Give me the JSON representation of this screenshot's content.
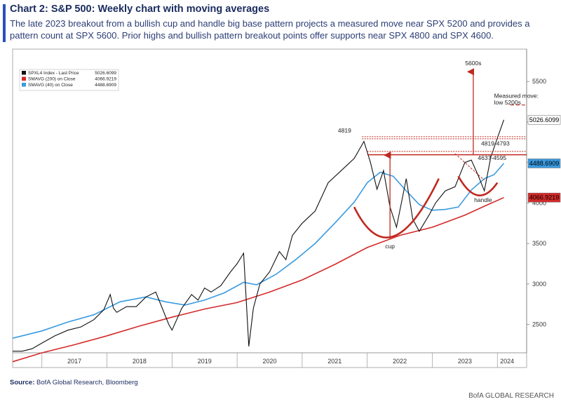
{
  "header": {
    "title": "Chart 2: S&P 500: Weekly chart with moving averages",
    "subtitle": "The late 2023 breakout from a bullish cup and handle big base pattern projects a measured move near SPX 5200 and provides a pattern count at SPX 5600. Prior highs and bullish pattern breakout points offer supports near SPX 4800 and SPX 4600."
  },
  "footer": {
    "source_label": "Source:",
    "source_text": " BofA Global Research, Bloomberg",
    "brand": "BofA GLOBAL RESEARCH"
  },
  "colors": {
    "price": "#111111",
    "sma200": "#d42a2a",
    "sma40": "#3a9be0",
    "annotation": "#c0281f",
    "accent": "#2a4fbf"
  },
  "chart_data": {
    "type": "line",
    "ylim": [
      2150,
      5900
    ],
    "yticks": [
      2500,
      3000,
      3500,
      4000,
      4500,
      5000,
      5500
    ],
    "xlim": [
      2016.55,
      2024.45
    ],
    "x_ticks": [
      2017.0,
      2018.0,
      2019.0,
      2020.0,
      2021.0,
      2022.0,
      2023.0,
      2024.0
    ],
    "x_labels": [
      "2017",
      "2018",
      "2019",
      "2020",
      "2021",
      "2022",
      "2023",
      "2024"
    ],
    "legend": [
      {
        "name": "SPXL4 Index - Last Price",
        "value": "5026.6099",
        "color": "#111111"
      },
      {
        "name": "SMAVG (200) on Close",
        "value": "4066.9219",
        "color": "#d42a2a"
      },
      {
        "name": "SMAVG (40) on Close",
        "value": "4488.6909",
        "color": "#3a9be0"
      }
    ],
    "last_value_tags": [
      {
        "label": "5026.6099",
        "value": 5026.6099,
        "bg": "#ffffff",
        "fg": "#000000"
      },
      {
        "label": "4488.6909",
        "value": 4488.6909,
        "bg": "#3a9be0",
        "fg": "#000000"
      },
      {
        "label": "4066.9219",
        "value": 4066.9219,
        "bg": "#d42a2a",
        "fg": "#ffffff"
      }
    ],
    "series": [
      {
        "name": "SPXL4 Index - Last Price",
        "x": [
          2016.55,
          2016.7,
          2016.85,
          2017.0,
          2017.2,
          2017.4,
          2017.6,
          2017.8,
          2017.95,
          2018.05,
          2018.1,
          2018.15,
          2018.3,
          2018.45,
          2018.6,
          2018.75,
          2018.85,
          2018.95,
          2019.0,
          2019.15,
          2019.3,
          2019.4,
          2019.5,
          2019.6,
          2019.75,
          2019.9,
          2020.0,
          2020.1,
          2020.18,
          2020.25,
          2020.35,
          2020.5,
          2020.65,
          2020.75,
          2020.85,
          2021.0,
          2021.2,
          2021.4,
          2021.6,
          2021.8,
          2021.95,
          2022.05,
          2022.15,
          2022.25,
          2022.35,
          2022.45,
          2022.55,
          2022.6,
          2022.7,
          2022.8,
          2022.95,
          2023.05,
          2023.2,
          2023.35,
          2023.5,
          2023.6,
          2023.7,
          2023.8,
          2023.83,
          2023.9,
          2024.0,
          2024.1
        ],
        "values": [
          2170,
          2170,
          2200,
          2270,
          2360,
          2430,
          2470,
          2560,
          2680,
          2870,
          2700,
          2650,
          2720,
          2720,
          2840,
          2900,
          2700,
          2500,
          2430,
          2700,
          2870,
          2800,
          2950,
          2900,
          2980,
          3150,
          3250,
          3380,
          2230,
          2700,
          3000,
          3150,
          3400,
          3300,
          3600,
          3750,
          3900,
          4250,
          4400,
          4550,
          4760,
          4500,
          4170,
          4400,
          3950,
          3700,
          4100,
          4300,
          3800,
          3650,
          3850,
          4000,
          4150,
          4200,
          4500,
          4530,
          4350,
          4150,
          4280,
          4570,
          4800,
          5027
        ]
      },
      {
        "name": "SMAVG (200) on Close",
        "x": [
          2016.55,
          2017.0,
          2017.5,
          2018.0,
          2018.5,
          2019.0,
          2019.5,
          2020.0,
          2020.5,
          2021.0,
          2021.5,
          2022.0,
          2022.5,
          2023.0,
          2023.5,
          2023.8,
          2024.1
        ],
        "values": [
          2040,
          2150,
          2250,
          2360,
          2480,
          2590,
          2690,
          2770,
          2900,
          3050,
          3240,
          3450,
          3600,
          3700,
          3850,
          3960,
          4067
        ]
      },
      {
        "name": "SMAVG (40) on Close",
        "x": [
          2016.55,
          2017.0,
          2017.4,
          2017.8,
          2018.2,
          2018.6,
          2018.9,
          2019.2,
          2019.5,
          2019.8,
          2020.1,
          2020.3,
          2020.6,
          2020.9,
          2021.2,
          2021.5,
          2021.8,
          2022.0,
          2022.2,
          2022.4,
          2022.6,
          2022.8,
          2023.0,
          2023.2,
          2023.4,
          2023.6,
          2023.8,
          2023.95,
          2024.1
        ],
        "values": [
          2330,
          2420,
          2530,
          2620,
          2780,
          2840,
          2780,
          2740,
          2800,
          2890,
          3020,
          2990,
          3120,
          3300,
          3500,
          3750,
          4010,
          4250,
          4380,
          4330,
          4150,
          3980,
          3910,
          3920,
          3950,
          4160,
          4300,
          4350,
          4489
        ]
      }
    ],
    "annotations": {
      "arrow_target_label": "5600s",
      "measured_move_label_1": "Measured move:",
      "measured_move_label_2": "low 5200s",
      "label_4819": "4819",
      "label_4819_4793": "4819-4793",
      "label_4637_4595": "4637-4595",
      "label_cup": "cup",
      "label_handle": "handle"
    }
  }
}
